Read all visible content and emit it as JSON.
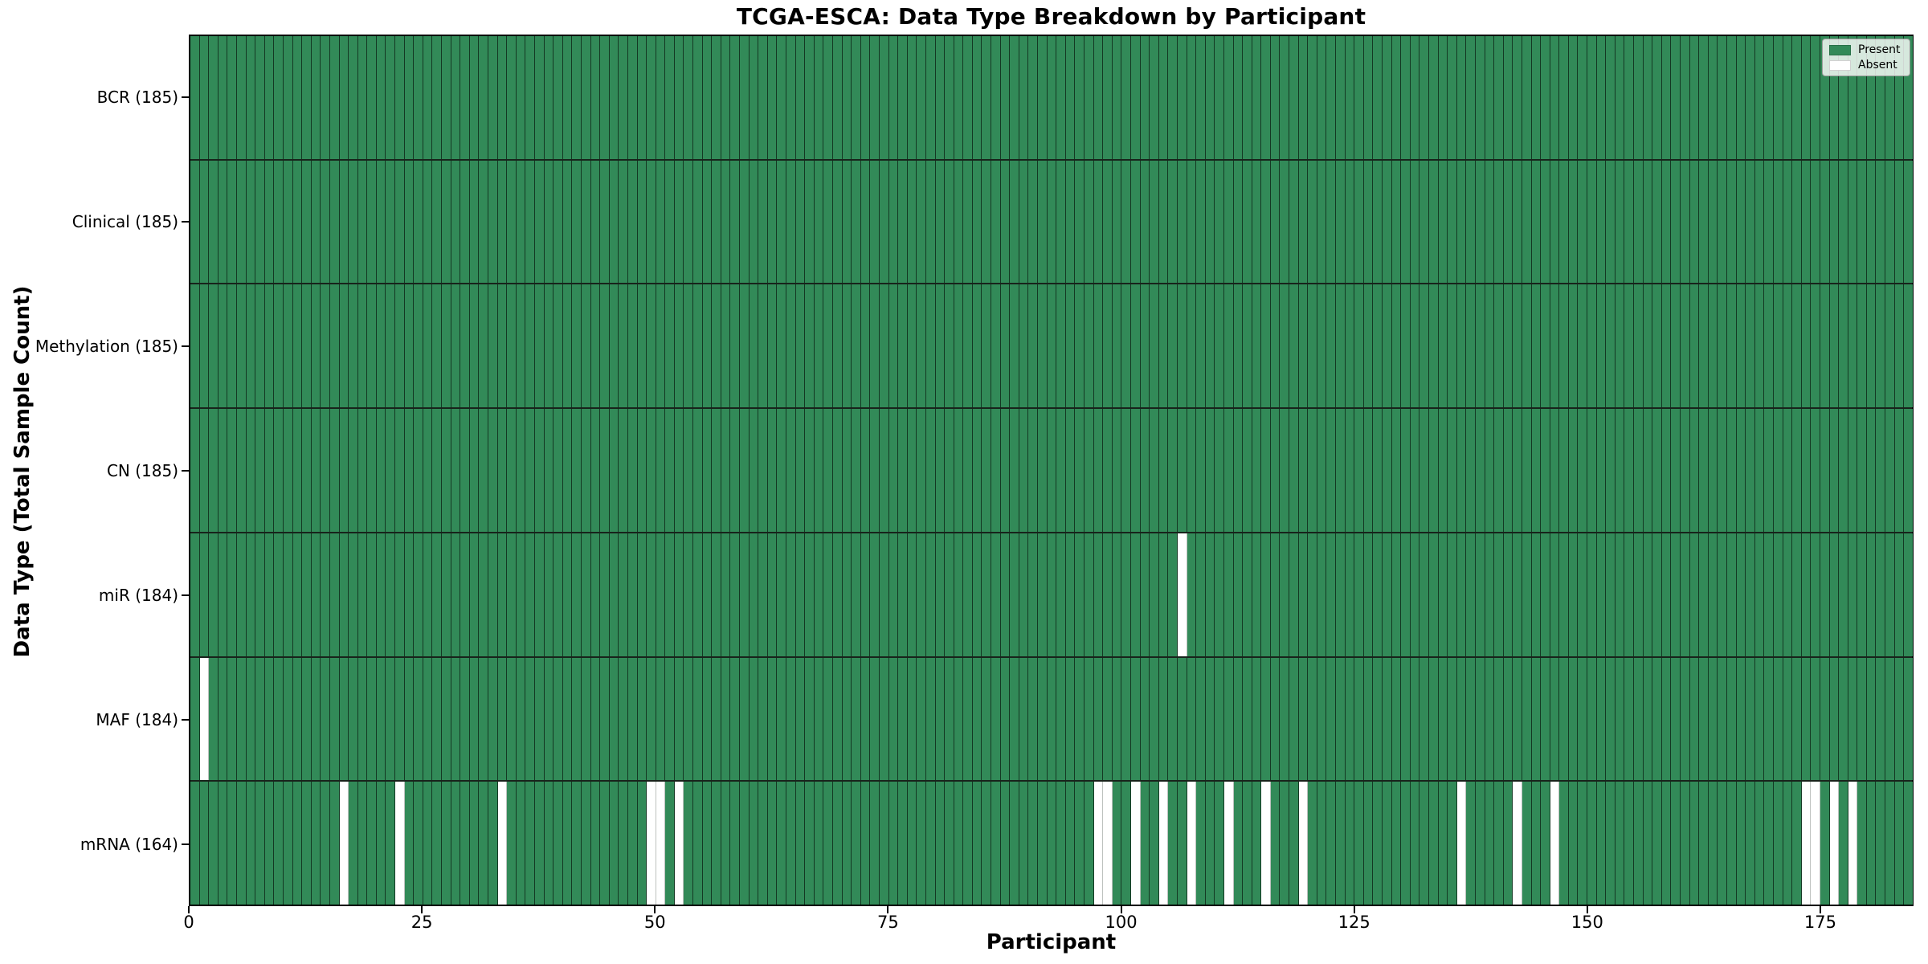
{
  "figure": {
    "title": "TCGA-ESCA: Data Type Breakdown by Participant",
    "x_axis_title": "Participant",
    "y_axis_title": "Data Type (Total Sample Count)"
  },
  "legend": {
    "items": [
      {
        "label": "Present",
        "color": "#328a58"
      },
      {
        "label": "Absent",
        "color": "#ffffff"
      }
    ]
  },
  "chart_data": {
    "type": "heatmap",
    "title": "TCGA-ESCA: Data Type Breakdown by Participant",
    "xlabel": "Participant",
    "ylabel": "Data Type (Total Sample Count)",
    "x_range": [
      0,
      185
    ],
    "n_participants": 185,
    "x_ticks": [
      0,
      25,
      50,
      75,
      100,
      125,
      150,
      175
    ],
    "present_color": "#328a58",
    "absent_color": "#ffffff",
    "grid": "cell-borders",
    "legend_position": "upper right",
    "legend_entries": [
      "Present",
      "Absent"
    ],
    "rows": [
      {
        "label": "BCR (185)",
        "data_type": "BCR",
        "present_count": 185,
        "absent_participants": []
      },
      {
        "label": "Clinical (185)",
        "data_type": "Clinical",
        "present_count": 185,
        "absent_participants": []
      },
      {
        "label": "Methylation (185)",
        "data_type": "Methylation",
        "present_count": 185,
        "absent_participants": []
      },
      {
        "label": "CN (185)",
        "data_type": "CN",
        "present_count": 185,
        "absent_participants": []
      },
      {
        "label": "miR (184)",
        "data_type": "miR",
        "present_count": 184,
        "absent_participants": [
          106
        ]
      },
      {
        "label": "MAF (184)",
        "data_type": "MAF",
        "present_count": 184,
        "absent_participants": [
          1
        ]
      },
      {
        "label": "mRNA (164)",
        "data_type": "mRNA",
        "present_count": 164,
        "absent_participants": [
          16,
          22,
          33,
          49,
          50,
          52,
          97,
          98,
          101,
          104,
          107,
          111,
          115,
          119,
          136,
          142,
          146,
          173,
          174,
          176,
          178
        ]
      }
    ]
  }
}
